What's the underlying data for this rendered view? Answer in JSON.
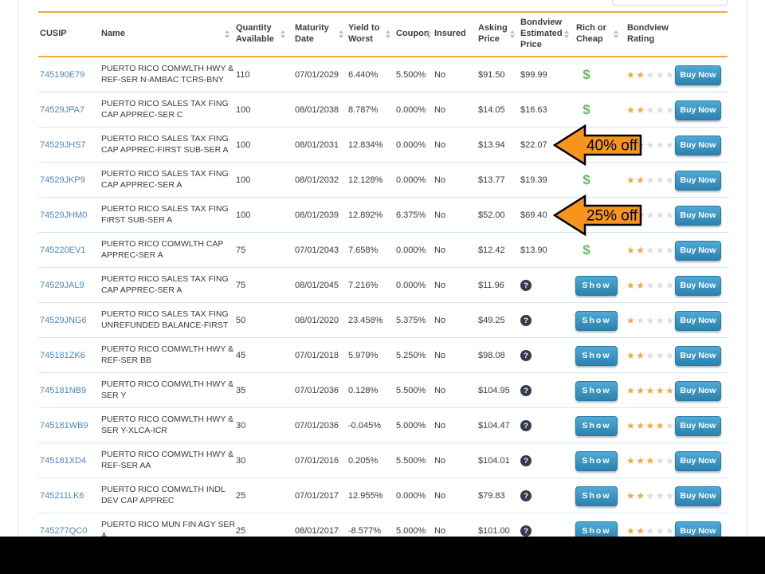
{
  "search": {
    "value": ""
  },
  "table": {
    "columns": [
      {
        "id": "cusip",
        "label": "CUSIP",
        "sortable": false
      },
      {
        "id": "name",
        "label": "Name",
        "sortable": true
      },
      {
        "id": "qty",
        "label": "Quantity\nAvailable",
        "sortable": true
      },
      {
        "id": "maturity",
        "label": "Maturity\nDate",
        "sortable": true
      },
      {
        "id": "yield",
        "label": "Yield to\nWorst",
        "sortable": true
      },
      {
        "id": "coupon",
        "label": "Coupon",
        "sortable": true
      },
      {
        "id": "insured",
        "label": "Insured",
        "sortable": false
      },
      {
        "id": "asking",
        "label": "Asking\nPrice",
        "sortable": true
      },
      {
        "id": "est",
        "label": "Bondview\nEstimated\nPrice",
        "sortable": true
      },
      {
        "id": "rich",
        "label": "Rich or\nCheap",
        "sortable": true
      },
      {
        "id": "rating",
        "label": "Bondview\nRating",
        "sortable": false
      }
    ],
    "buy_label": "Buy Now",
    "show_label": "Show",
    "rows": [
      {
        "cusip": "745190E79",
        "name": "PUERTO RICO COMWLTH HWY & REF-SER N-AMBAC TCRS-BNY",
        "qty": "110",
        "maturity": "07/01/2029",
        "yield": "6.440%",
        "coupon": "5.500%",
        "insured": "No",
        "asking": "$91.50",
        "est": "$99.99",
        "rich": "dollar",
        "rating": 2
      },
      {
        "cusip": "74529JPA7",
        "name": "PUERTO RICO SALES TAX FING CAP APPREC-SER C",
        "qty": "100",
        "maturity": "08/01/2038",
        "yield": "8.787%",
        "coupon": "0.000%",
        "insured": "No",
        "asking": "$14.05",
        "est": "$16.63",
        "rich": "dollar",
        "rating": 2
      },
      {
        "cusip": "74529JHS7",
        "name": "PUERTO RICO SALES TAX FING CAP APPREC-FIRST SUB-SER A",
        "qty": "100",
        "maturity": "08/01/2031",
        "yield": "12.834%",
        "coupon": "0.000%",
        "insured": "No",
        "asking": "$13.94",
        "est": "$22.07",
        "rich": "dollar",
        "rating": 2
      },
      {
        "cusip": "74529JKP9",
        "name": "PUERTO RICO SALES TAX FING CAP APPREC-SER A",
        "qty": "100",
        "maturity": "08/01/2032",
        "yield": "12.128%",
        "coupon": "0.000%",
        "insured": "No",
        "asking": "$13.77",
        "est": "$19.39",
        "rich": "dollar",
        "rating": 2
      },
      {
        "cusip": "74529JHM0",
        "name": "PUERTO RICO SALES TAX FING FIRST SUB-SER A",
        "qty": "100",
        "maturity": "08/01/2039",
        "yield": "12.892%",
        "coupon": "6.375%",
        "insured": "No",
        "asking": "$52.00",
        "est": "$69.40",
        "rich": "dollar",
        "rating": 2
      },
      {
        "cusip": "745220EV1",
        "name": "PUERTO RICO COMWLTH CAP APPREC-SER A",
        "qty": "75",
        "maturity": "07/01/2043",
        "yield": "7.658%",
        "coupon": "0.000%",
        "insured": "No",
        "asking": "$12.42",
        "est": "$13.90",
        "rich": "dollar",
        "rating": 2
      },
      {
        "cusip": "74529JAL9",
        "name": "PUERTO RICO SALES TAX FING CAP APPREC-SER A",
        "qty": "75",
        "maturity": "08/01/2045",
        "yield": "7.216%",
        "coupon": "0.000%",
        "insured": "No",
        "asking": "$11.96",
        "est": null,
        "rich": "show",
        "rating": 2
      },
      {
        "cusip": "74529JNG6",
        "name": "PUERTO RICO SALES TAX FING UNREFUNDED BALANCE-FIRST",
        "qty": "50",
        "maturity": "08/01/2020",
        "yield": "23.458%",
        "coupon": "5.375%",
        "insured": "No",
        "asking": "$49.25",
        "est": null,
        "rich": "show",
        "rating": 1
      },
      {
        "cusip": "745181ZK6",
        "name": "PUERTO RICO COMWLTH HWY & REF-SER BB",
        "qty": "45",
        "maturity": "07/01/2018",
        "yield": "5.979%",
        "coupon": "5.250%",
        "insured": "No",
        "asking": "$98.08",
        "est": null,
        "rich": "show",
        "rating": 2
      },
      {
        "cusip": "745181NB9",
        "name": "PUERTO RICO COMWLTH HWY & SER Y",
        "qty": "35",
        "maturity": "07/01/2036",
        "yield": "0.128%",
        "coupon": "5.500%",
        "insured": "No",
        "asking": "$104.95",
        "est": null,
        "rich": "show",
        "rating": 5
      },
      {
        "cusip": "745181WB9",
        "name": "PUERTO RICO COMWLTH HWY & SER Y-XLCA-ICR",
        "qty": "30",
        "maturity": "07/01/2036",
        "yield": "-0.045%",
        "coupon": "5.000%",
        "insured": "No",
        "asking": "$104.47",
        "est": null,
        "rich": "show",
        "rating": 4
      },
      {
        "cusip": "745181XD4",
        "name": "PUERTO RICO COMWLTH HWY & REF-SER AA",
        "qty": "30",
        "maturity": "07/01/2016",
        "yield": "0.205%",
        "coupon": "5.500%",
        "insured": "No",
        "asking": "$104.01",
        "est": null,
        "rich": "show",
        "rating": 3
      },
      {
        "cusip": "745211LK6",
        "name": "PUERTO RICO COMWLTH INDL DEV CAP APPREC",
        "qty": "25",
        "maturity": "07/01/2017",
        "yield": "12.955%",
        "coupon": "0.000%",
        "insured": "No",
        "asking": "$79.83",
        "est": null,
        "rich": "show",
        "rating": 2
      },
      {
        "cusip": "745277QC0",
        "name": "PUERTO RICO MUN FIN AGY SER A",
        "qty": "25",
        "maturity": "08/01/2017",
        "yield": "-8.577%",
        "coupon": "5.000%",
        "insured": "No",
        "asking": "$101.00",
        "est": null,
        "rich": "show",
        "rating": 2
      }
    ]
  },
  "annotations": [
    {
      "text": "40% off",
      "target_row": 3
    },
    {
      "text": "25% off",
      "target_row": 5
    }
  ],
  "icons": {
    "sort": "sort-chevrons-icon",
    "estimate_hidden": "question-mark-icon",
    "cheap": "dollar-icon",
    "rating": "star-icon"
  },
  "colors": {
    "accent_orange": "#F5A93F",
    "annotation_orange": "#F7941E",
    "button_blue_top": "#4DAAD6",
    "button_blue_bottom": "#2E81AE",
    "star_orange": "#F2A741",
    "dollar_green": "#67BD67",
    "link_blue": "#4D86C0",
    "separator_blue": "#CFE9F5"
  }
}
